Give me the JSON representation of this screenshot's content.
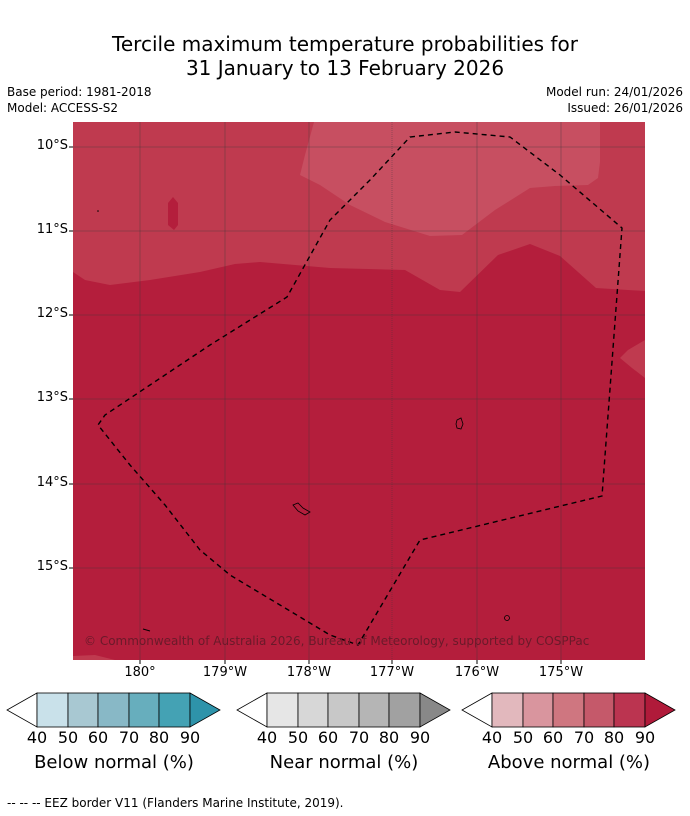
{
  "title": {
    "line1": "Tercile maximum temperature probabilities for",
    "line2": "31 January to 13 February 2026"
  },
  "meta": {
    "base_period": "Base period: 1981-2018",
    "model": "Model: ACCESS-S2",
    "model_run": "Model run: 24/01/2026",
    "issued": "Issued: 26/01/2026"
  },
  "map": {
    "copyright": "© Commonwealth of Australia 2026, Bureau of Meteorology, supported by COSPPac",
    "lat_labels": [
      "10°S",
      "11°S",
      "12°S",
      "13°S",
      "14°S",
      "15°S"
    ],
    "lon_labels": [
      "180°",
      "179°W",
      "178°W",
      "177°W",
      "176°W",
      "175°W"
    ],
    "colors": {
      "above_80": "#bf3a4f",
      "above_90": "#b41e3c",
      "above_70": "#c95867",
      "eez_border": "#000000"
    }
  },
  "colorbars": [
    {
      "title": "Below normal (%)",
      "ticks": [
        "40",
        "50",
        "60",
        "70",
        "80",
        "90"
      ],
      "colors": [
        "#c9e1ea",
        "#a8c8d2",
        "#88b8c6",
        "#67aebd",
        "#44a2b4",
        "#2e93aa"
      ]
    },
    {
      "title": "Near normal (%)",
      "ticks": [
        "40",
        "50",
        "60",
        "70",
        "80",
        "90"
      ],
      "colors": [
        "#e6e6e6",
        "#d7d7d7",
        "#c8c8c8",
        "#b5b5b5",
        "#a1a1a1",
        "#888888"
      ]
    },
    {
      "title": "Above normal (%)",
      "ticks": [
        "40",
        "50",
        "60",
        "70",
        "80",
        "90"
      ],
      "colors": [
        "#e2b8bd",
        "#d9959e",
        "#cf7680",
        "#c5596a",
        "#bb3450",
        "#b01a3a"
      ]
    }
  ],
  "footnote": "-- -- -- EEZ border V11 (Flanders Marine Institute, 2019)."
}
